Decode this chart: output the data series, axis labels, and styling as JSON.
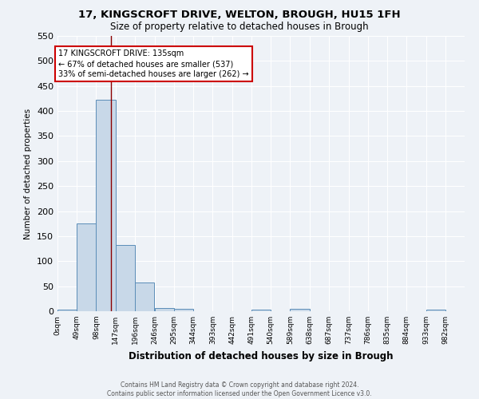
{
  "title1": "17, KINGSCROFT DRIVE, WELTON, BROUGH, HU15 1FH",
  "title2": "Size of property relative to detached houses in Brough",
  "xlabel": "Distribution of detached houses by size in Brough",
  "ylabel": "Number of detached properties",
  "bin_edges": [
    0,
    49,
    98,
    147,
    196,
    246,
    295,
    344,
    393,
    442,
    491,
    540,
    589,
    638,
    687,
    737,
    786,
    835,
    884,
    933,
    982
  ],
  "bin_labels": [
    "0sqm",
    "49sqm",
    "98sqm",
    "147sqm",
    "196sqm",
    "246sqm",
    "295sqm",
    "344sqm",
    "393sqm",
    "442sqm",
    "491sqm",
    "540sqm",
    "589sqm",
    "638sqm",
    "687sqm",
    "737sqm",
    "786sqm",
    "835sqm",
    "884sqm",
    "933sqm",
    "982sqm"
  ],
  "counts": [
    3,
    175,
    422,
    133,
    58,
    7,
    5,
    0,
    0,
    0,
    3,
    0,
    4,
    0,
    0,
    0,
    0,
    0,
    0,
    3
  ],
  "bar_color": "#c8d8e8",
  "bar_edge_color": "#5b8db8",
  "vline_x": 135,
  "vline_color": "#8b0000",
  "ylim": [
    0,
    550
  ],
  "yticks": [
    0,
    50,
    100,
    150,
    200,
    250,
    300,
    350,
    400,
    450,
    500,
    550
  ],
  "annotation_text": "17 KINGSCROFT DRIVE: 135sqm\n← 67% of detached houses are smaller (537)\n33% of semi-detached houses are larger (262) →",
  "annotation_box_color": "white",
  "annotation_box_edge": "#cc0000",
  "footer1": "Contains HM Land Registry data © Crown copyright and database right 2024.",
  "footer2": "Contains public sector information licensed under the Open Government Licence v3.0.",
  "bg_color": "#eef2f7",
  "grid_color": "#ffffff"
}
